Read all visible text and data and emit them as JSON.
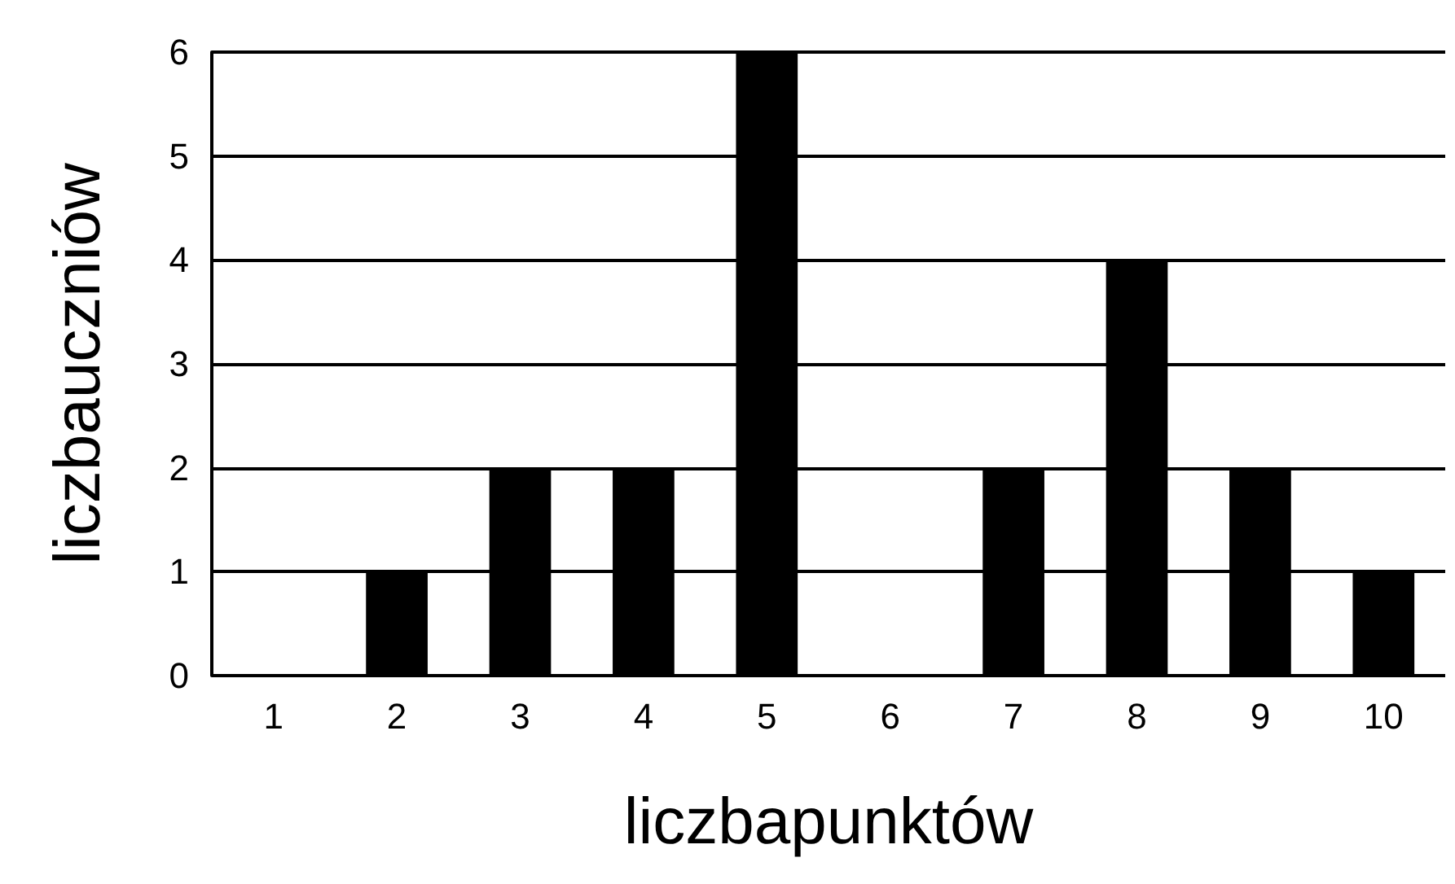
{
  "chart_data": {
    "type": "bar",
    "xlabel": "liczbapunktów",
    "ylabel": "liczbauczniów",
    "categories": [
      "1",
      "2",
      "3",
      "4",
      "5",
      "6",
      "7",
      "8",
      "9",
      "10"
    ],
    "values": [
      0,
      1,
      2,
      2,
      6,
      0,
      2,
      4,
      2,
      1
    ],
    "color": "#000000",
    "ylim": [
      0,
      6
    ],
    "yticks": [
      0,
      1,
      2,
      3,
      4,
      5,
      6
    ],
    "grid": "y"
  }
}
